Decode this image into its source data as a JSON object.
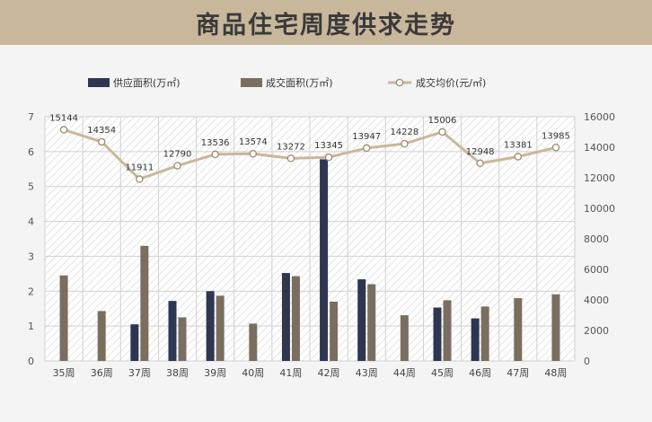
{
  "page_title": "商品住宅周度供求走势",
  "colors": {
    "supply": "#2e3650",
    "transaction": "#7a6e60",
    "price_line": "#c9b79c",
    "price_marker_fill": "#ffffff",
    "grid": "#d0d0d0",
    "plot_bg": "#ffffff",
    "hatch": "#e2e2e2"
  },
  "chart_data": {
    "type": "bar",
    "title": "",
    "categories": [
      "35周",
      "36周",
      "37周",
      "38周",
      "39周",
      "40周",
      "41周",
      "42周",
      "43周",
      "44周",
      "45周",
      "46周",
      "47周",
      "48周"
    ],
    "y_left": {
      "min": 0,
      "max": 7,
      "ticks": [
        0,
        1,
        2,
        3,
        4,
        5,
        6,
        7
      ]
    },
    "y_right": {
      "min": 0,
      "max": 16000,
      "ticks": [
        0,
        2000,
        4000,
        6000,
        8000,
        10000,
        12000,
        14000,
        16000
      ]
    },
    "grid": true,
    "legend_position": "top",
    "series": [
      {
        "name": "供应面积(万㎡)",
        "type": "bar",
        "axis": "left",
        "values": [
          null,
          null,
          1.05,
          1.72,
          2.0,
          null,
          2.52,
          5.78,
          2.34,
          null,
          1.53,
          1.22,
          null,
          null
        ]
      },
      {
        "name": "成交面积(万㎡)",
        "type": "bar",
        "axis": "left",
        "values": [
          2.45,
          1.43,
          3.3,
          1.25,
          1.87,
          1.07,
          2.43,
          1.7,
          2.2,
          1.31,
          1.74,
          1.56,
          1.8,
          1.91
        ]
      },
      {
        "name": "成交均价(元/㎡)",
        "type": "line",
        "axis": "right",
        "values": [
          15144,
          14354,
          11911,
          12790,
          13536,
          13574,
          13272,
          13345,
          13947,
          14228,
          15006,
          12948,
          13381,
          13985
        ]
      }
    ]
  }
}
